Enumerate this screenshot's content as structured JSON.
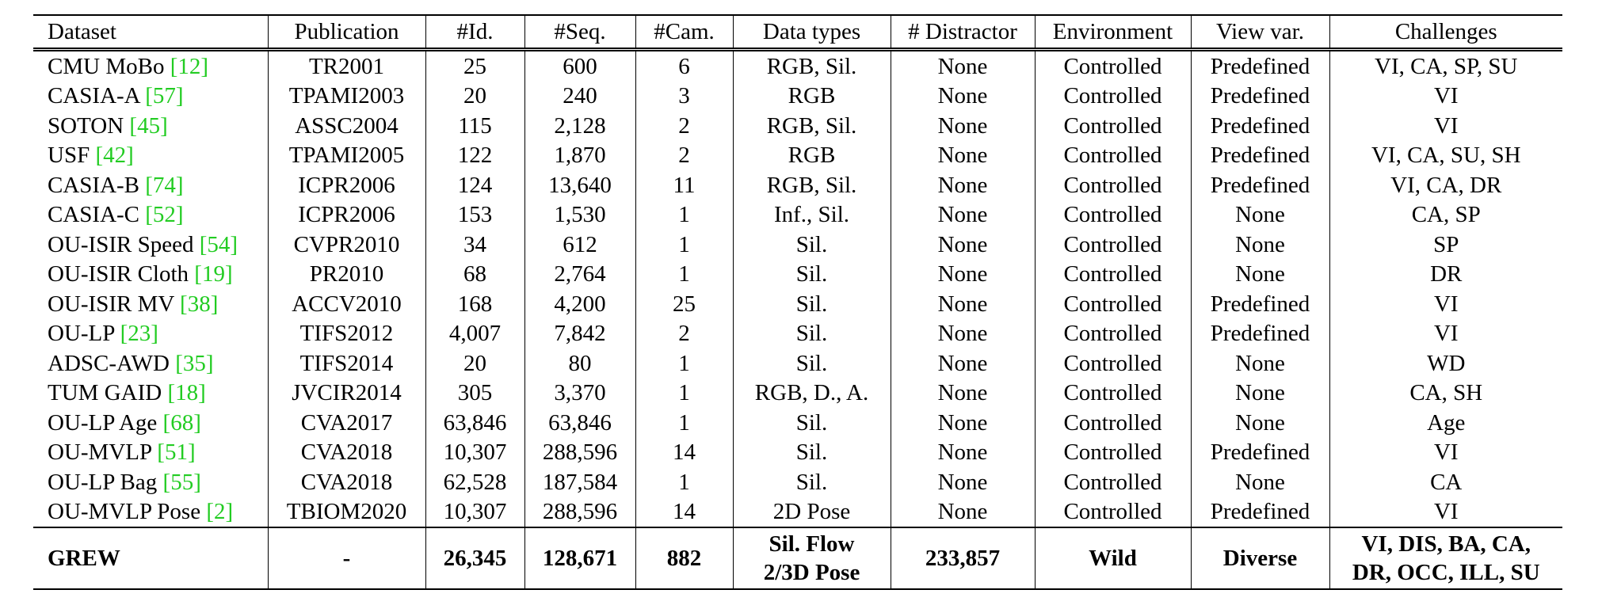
{
  "table": {
    "header": [
      "Dataset",
      "Publication",
      "#Id.",
      "#Seq.",
      "#Cam.",
      "Data types",
      "# Distractor",
      "Environment",
      "View var.",
      "Challenges"
    ],
    "rows": [
      [
        {
          "name": "CMU MoBo",
          "ref": "[12]"
        },
        "TR2001",
        "25",
        "600",
        "6",
        "RGB, Sil.",
        "None",
        "Controlled",
        "Predefined",
        "VI, CA, SP, SU"
      ],
      [
        {
          "name": "CASIA-A",
          "ref": "[57]"
        },
        "TPAMI2003",
        "20",
        "240",
        "3",
        "RGB",
        "None",
        "Controlled",
        "Predefined",
        "VI"
      ],
      [
        {
          "name": "SOTON",
          "ref": "[45]"
        },
        "ASSC2004",
        "115",
        "2,128",
        "2",
        "RGB, Sil.",
        "None",
        "Controlled",
        "Predefined",
        "VI"
      ],
      [
        {
          "name": "USF",
          "ref": "[42]"
        },
        "TPAMI2005",
        "122",
        "1,870",
        "2",
        "RGB",
        "None",
        "Controlled",
        "Predefined",
        "VI, CA, SU, SH"
      ],
      [
        {
          "name": "CASIA-B",
          "ref": "[74]"
        },
        "ICPR2006",
        "124",
        "13,640",
        "11",
        "RGB, Sil.",
        "None",
        "Controlled",
        "Predefined",
        "VI, CA, DR"
      ],
      [
        {
          "name": "CASIA-C",
          "ref": "[52]"
        },
        "ICPR2006",
        "153",
        "1,530",
        "1",
        "Inf., Sil.",
        "None",
        "Controlled",
        "None",
        "CA, SP"
      ],
      [
        {
          "name": "OU-ISIR Speed",
          "ref": "[54]"
        },
        "CVPR2010",
        "34",
        "612",
        "1",
        "Sil.",
        "None",
        "Controlled",
        "None",
        "SP"
      ],
      [
        {
          "name": "OU-ISIR Cloth",
          "ref": "[19]"
        },
        "PR2010",
        "68",
        "2,764",
        "1",
        "Sil.",
        "None",
        "Controlled",
        "None",
        "DR"
      ],
      [
        {
          "name": "OU-ISIR MV",
          "ref": "[38]"
        },
        "ACCV2010",
        "168",
        "4,200",
        "25",
        "Sil.",
        "None",
        "Controlled",
        "Predefined",
        "VI"
      ],
      [
        {
          "name": "OU-LP",
          "ref": "[23]"
        },
        "TIFS2012",
        "4,007",
        "7,842",
        "2",
        "Sil.",
        "None",
        "Controlled",
        "Predefined",
        "VI"
      ],
      [
        {
          "name": "ADSC-AWD",
          "ref": "[35]"
        },
        "TIFS2014",
        "20",
        "80",
        "1",
        "Sil.",
        "None",
        "Controlled",
        "None",
        "WD"
      ],
      [
        {
          "name": "TUM GAID",
          "ref": "[18]"
        },
        "JVCIR2014",
        "305",
        "3,370",
        "1",
        "RGB, D., A.",
        "None",
        "Controlled",
        "None",
        "CA, SH"
      ],
      [
        {
          "name": "OU-LP Age",
          "ref": "[68]"
        },
        "CVA2017",
        "63,846",
        "63,846",
        "1",
        "Sil.",
        "None",
        "Controlled",
        "None",
        "Age"
      ],
      [
        {
          "name": "OU-MVLP",
          "ref": "[51]"
        },
        "CVA2018",
        "10,307",
        "288,596",
        "14",
        "Sil.",
        "None",
        "Controlled",
        "Predefined",
        "VI"
      ],
      [
        {
          "name": "OU-LP Bag",
          "ref": "[55]"
        },
        "CVA2018",
        "62,528",
        "187,584",
        "1",
        "Sil.",
        "None",
        "Controlled",
        "None",
        "CA"
      ],
      [
        {
          "name": "OU-MVLP Pose",
          "ref": "[2]"
        },
        "TBIOM2020",
        "10,307",
        "288,596",
        "14",
        "2D Pose",
        "None",
        "Controlled",
        "Predefined",
        "VI"
      ]
    ],
    "highlight_row": [
      "GREW",
      "-",
      "26,345",
      "128,671",
      "882",
      [
        "Sil. Flow",
        "2/3D Pose"
      ],
      "233,857",
      "Wild",
      "Diverse",
      [
        "VI, DIS, BA, CA,",
        "DR, OCC, ILL, SU"
      ]
    ]
  }
}
